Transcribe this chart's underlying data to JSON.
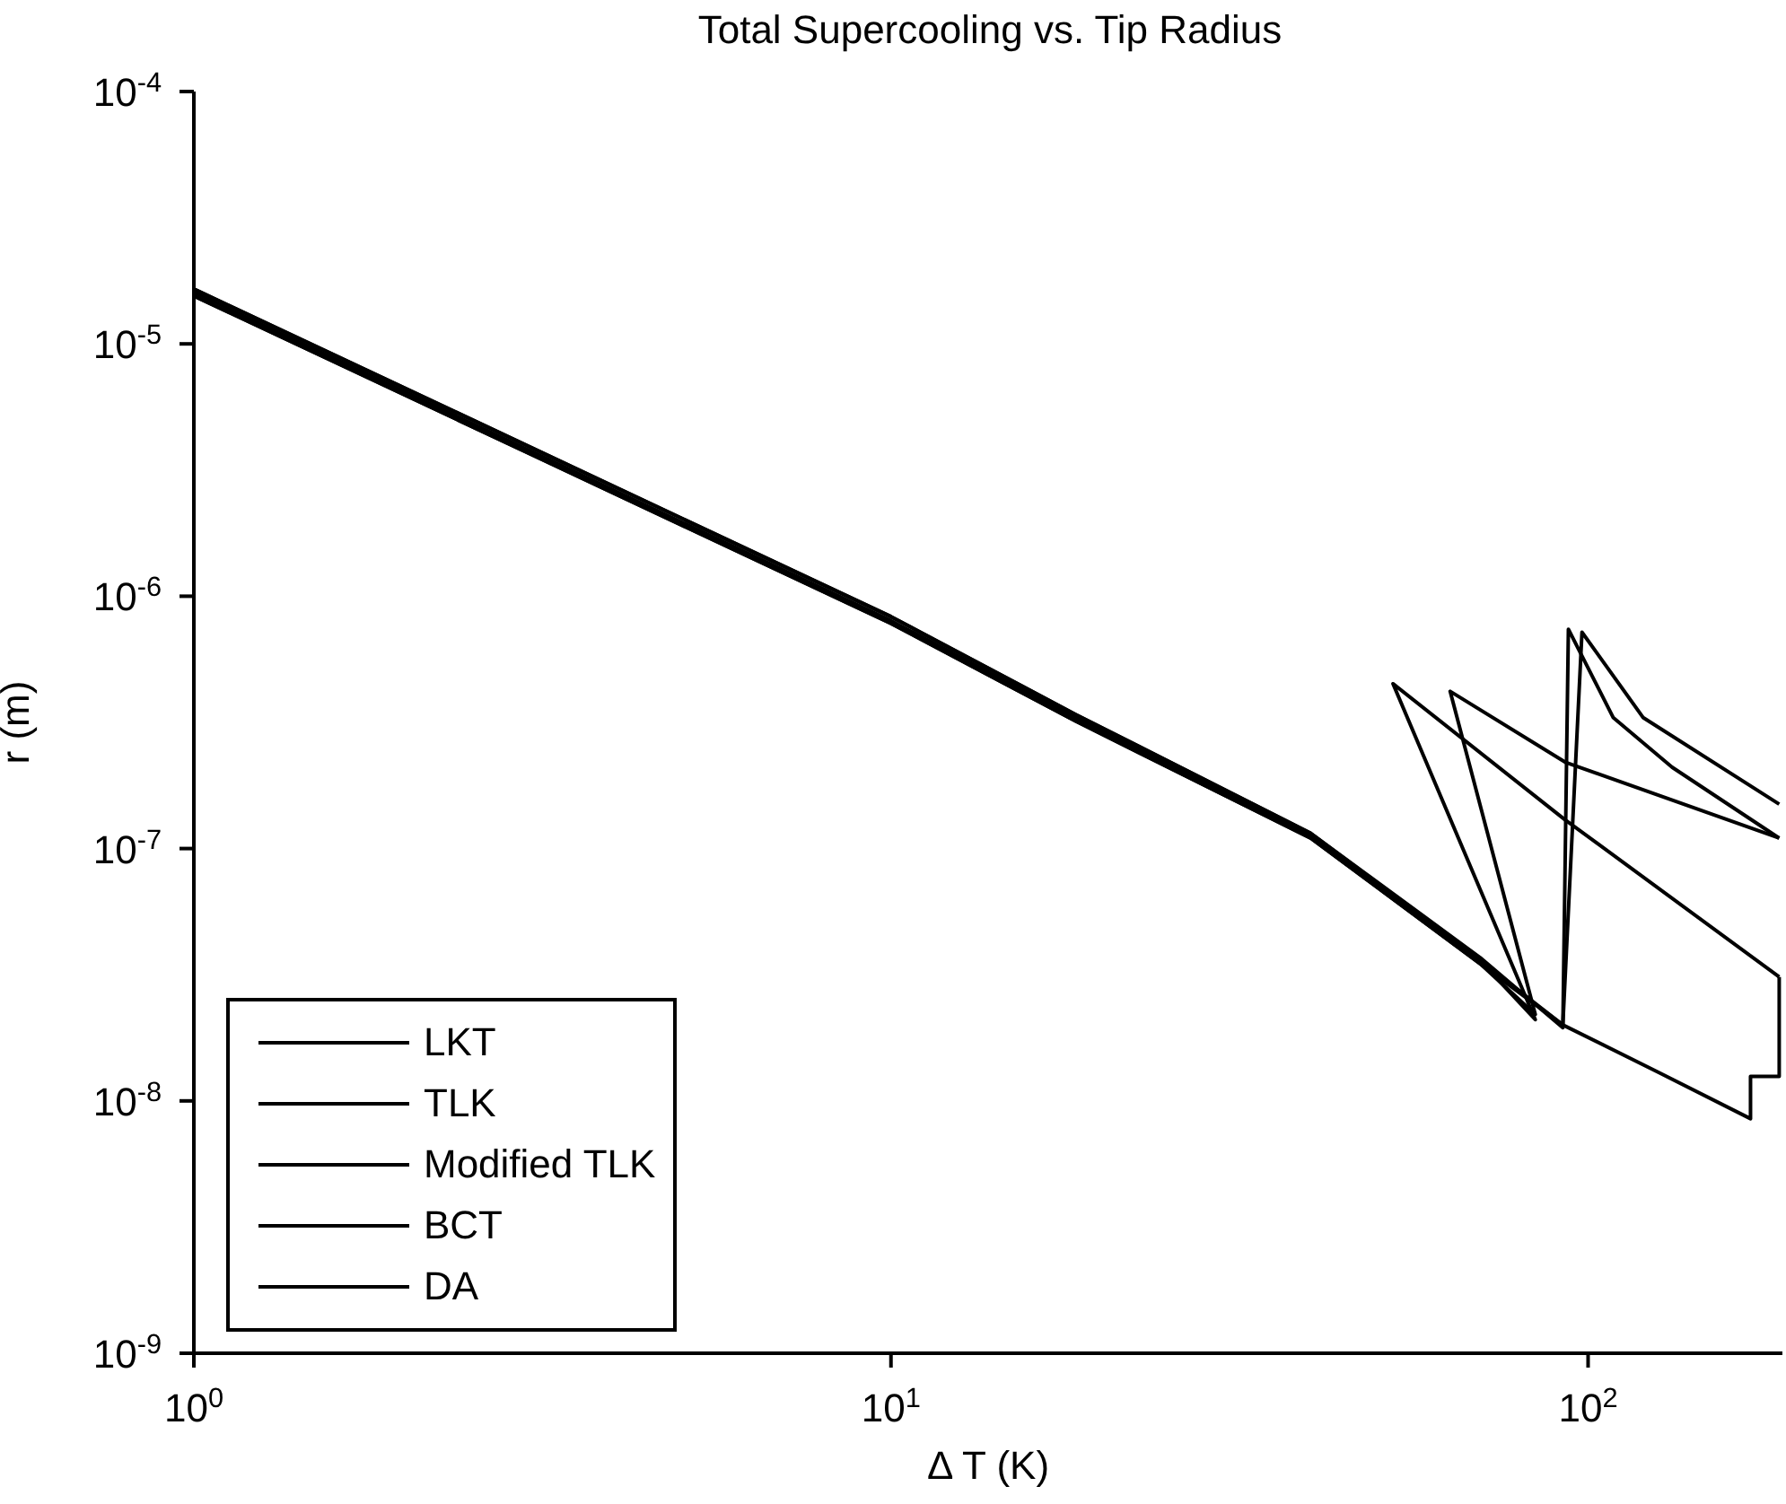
{
  "chart_data": {
    "type": "line",
    "title": "Total Supercooling vs. Tip Radius",
    "xlabel": "Δ T (K)",
    "ylabel": "r (m)",
    "log": "xy",
    "legend": "bottom left",
    "line_style": "solid",
    "marker": "none",
    "xlim": [
      1,
      190
    ],
    "xticks": [
      {
        "value": 1,
        "label": "10$^{0}$"
      },
      {
        "value": 10,
        "label": "10$^{1}$"
      },
      {
        "value": 100,
        "label": "10$^{2}$"
      }
    ],
    "ylim": [
      1e-09,
      0.0001
    ],
    "yticks": [
      {
        "value": 1e-09,
        "label": "10$^{-9}$"
      },
      {
        "value": 1e-08,
        "label": "10$^{-8}$"
      },
      {
        "value": 1e-07,
        "label": "10$^{-7}$"
      },
      {
        "value": 1e-06,
        "label": "10$^{-6}$"
      },
      {
        "value": 1e-05,
        "label": "10$^{-5}$"
      },
      {
        "value": 0.0001,
        "label": "10$^{-4}$"
      }
    ],
    "series": [
      {
        "name": "LKT",
        "color": "#000000",
        "x": [
          1,
          10,
          18.4,
          40,
          70,
          84,
          52.5,
          92.7,
          188
        ],
        "values": [
          1.65e-05,
          8.3e-07,
          3.4e-07,
          1.15e-07,
          3.6e-08,
          2.1e-08,
          4.5e-07,
          1.3e-07,
          3.1e-08
        ]
      },
      {
        "name": "TLK",
        "color": "#000000",
        "x": [
          1,
          10,
          18.4,
          40,
          70,
          84,
          63.4,
          92.7,
          188
        ],
        "values": [
          1.55e-05,
          7.8e-07,
          3.2e-07,
          1.1e-07,
          3.5e-08,
          2.2e-08,
          4.2e-07,
          2.2e-07,
          1.1e-07
        ]
      },
      {
        "name": "Modified TLK",
        "color": "#000000",
        "x": [
          1,
          10,
          18.4,
          40,
          70,
          92,
          93.7,
          108.7,
          132,
          188
        ],
        "values": [
          1.65e-05,
          8.3e-07,
          3.4e-07,
          1.15e-07,
          3.7e-08,
          1.95e-08,
          7.4e-07,
          3.3e-07,
          2.1e-07,
          1.1e-07
        ]
      },
      {
        "name": "BCT",
        "color": "#000000",
        "x": [
          1,
          10,
          18.4,
          40,
          70,
          92,
          98,
          120,
          188
        ],
        "values": [
          1.55e-05,
          7.8e-07,
          3.2e-07,
          1.1e-07,
          3.5e-08,
          2e-08,
          7.2e-07,
          3.3e-07,
          1.5e-07
        ]
      },
      {
        "name": "DA",
        "color": "#000000",
        "x": [
          1,
          10,
          18.4,
          40,
          70,
          92,
          126,
          171,
          171,
          188,
          188
        ],
        "values": [
          1.6e-05,
          8e-07,
          3.3e-07,
          1.12e-07,
          3.6e-08,
          2e-08,
          1.3e-08,
          8.5e-09,
          1.25e-08,
          1.25e-08,
          3.1e-08
        ]
      }
    ]
  }
}
